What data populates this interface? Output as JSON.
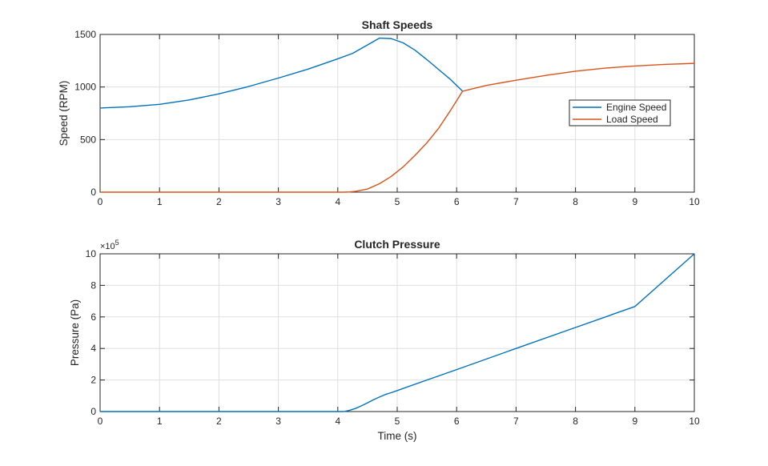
{
  "chart_data": [
    {
      "type": "line",
      "title": "Shaft Speeds",
      "xlabel": "",
      "ylabel": "Speed (RPM)",
      "xlim": [
        0,
        10
      ],
      "ylim": [
        0,
        1500
      ],
      "xticks": [
        "0",
        "1",
        "2",
        "3",
        "4",
        "5",
        "6",
        "7",
        "8",
        "9",
        "10"
      ],
      "yticks": [
        "0",
        "500",
        "1000",
        "1500"
      ],
      "grid": true,
      "legend": "right",
      "series": [
        {
          "name": "Engine Speed",
          "color": "#0072BD",
          "x": [
            0,
            0.5,
            1,
            1.5,
            2,
            2.5,
            3,
            3.5,
            4,
            4.25,
            4.5,
            4.7,
            4.9,
            5.1,
            5.3,
            5.5,
            5.7,
            5.9,
            6.1
          ],
          "y": [
            800,
            812,
            835,
            877,
            935,
            1005,
            1085,
            1170,
            1268,
            1320,
            1400,
            1465,
            1460,
            1420,
            1350,
            1260,
            1165,
            1070,
            960
          ]
        },
        {
          "name": "Load Speed",
          "color": "#D95319",
          "x": [
            0,
            1,
            2,
            3,
            4,
            4.1,
            4.2,
            4.3,
            4.5,
            4.7,
            4.9,
            5.1,
            5.3,
            5.5,
            5.7,
            5.9,
            6.1,
            6.5,
            7,
            7.5,
            8,
            8.5,
            9,
            9.5,
            10
          ],
          "y": [
            0,
            0,
            0,
            0,
            0,
            0,
            2,
            8,
            30,
            80,
            150,
            240,
            350,
            470,
            610,
            780,
            960,
            1015,
            1065,
            1110,
            1150,
            1180,
            1200,
            1215,
            1225
          ]
        }
      ]
    },
    {
      "type": "line",
      "title": "Clutch Pressure",
      "xlabel": "Time (s)",
      "ylabel": "Pressure (Pa)",
      "xlim": [
        0,
        10
      ],
      "ylim": [
        0,
        10
      ],
      "exponent_label": "×10",
      "exponent_power": "5",
      "xticks": [
        "0",
        "1",
        "2",
        "3",
        "4",
        "5",
        "6",
        "7",
        "8",
        "9",
        "10"
      ],
      "yticks": [
        "0",
        "2",
        "4",
        "6",
        "8",
        "10"
      ],
      "grid": true,
      "series": [
        {
          "color": "#0072BD",
          "x": [
            0,
            1,
            2,
            3,
            4,
            4.1,
            4.2,
            4.3,
            4.4,
            4.5,
            4.6,
            4.7,
            4.8,
            4.9,
            5.0,
            5.5,
            6,
            7,
            8,
            9,
            10
          ],
          "y": [
            0,
            0,
            0,
            0,
            0,
            0,
            0.08,
            0.2,
            0.37,
            0.55,
            0.75,
            0.92,
            1.08,
            1.2,
            1.33,
            2.0,
            2.66,
            4.0,
            5.33,
            6.66,
            10.0
          ]
        }
      ]
    }
  ]
}
